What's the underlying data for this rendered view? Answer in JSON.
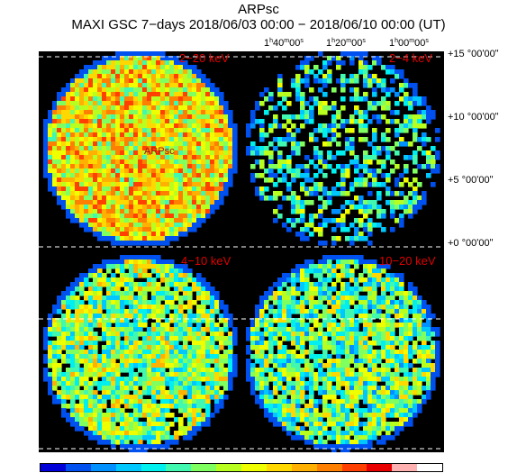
{
  "title": "ARPsc",
  "subtitle": "MAXI GSC 7−days 2018/06/03 00:00 − 2018/06/10 00:00 (UT)",
  "ra_labels": [
    {
      "h": "1",
      "m": "40",
      "s": "00"
    },
    {
      "h": "1",
      "m": "20",
      "s": "00"
    },
    {
      "h": "1",
      "m": "00",
      "s": "00"
    }
  ],
  "dec_labels": [
    "+15 °00ʹ00ʺ",
    "+10 °00ʹ00ʺ",
    "+5 °00ʹ00ʺ",
    "+0 °00ʹ00ʺ"
  ],
  "panels": [
    {
      "label": "2−20 keV",
      "seed": 11,
      "base": 0.62,
      "density": 1.0
    },
    {
      "label": "2−4 keV",
      "seed": 23,
      "base": 0.3,
      "density": 0.5
    },
    {
      "label": "4−10 keV",
      "seed": 37,
      "base": 0.45,
      "density": 0.9
    },
    {
      "label": "10−20 keV",
      "seed": 53,
      "base": 0.4,
      "density": 0.85
    }
  ],
  "source_label": "ARPsc",
  "colorscale": [
    "#0000d8",
    "#0050f0",
    "#0090ff",
    "#00c8ff",
    "#00f0f0",
    "#40f8b0",
    "#80ff60",
    "#b8ff20",
    "#f0ff00",
    "#ffd800",
    "#ffb000",
    "#ff8000",
    "#ff4000",
    "#e80000",
    "#ffb0b0",
    "#ffffff"
  ]
}
